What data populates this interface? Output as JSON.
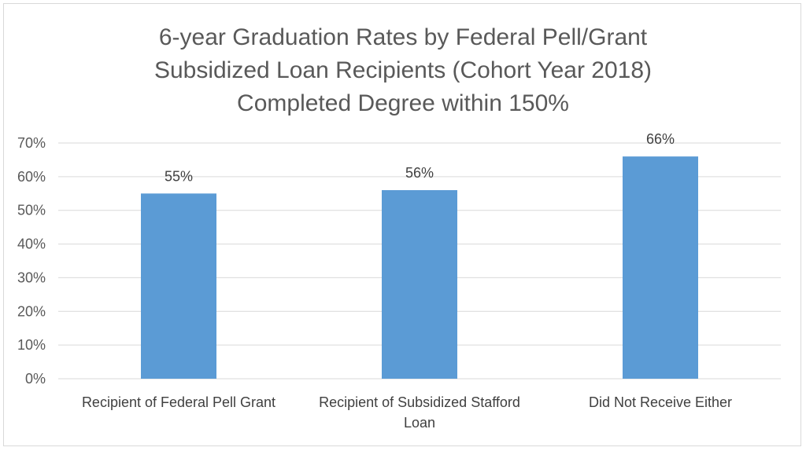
{
  "chart_data": {
    "type": "bar",
    "title_lines": [
      "6-year Graduation Rates by Federal Pell/Grant",
      "Subsidized Loan Recipients (Cohort Year 2018)",
      "Completed Degree within 150%"
    ],
    "categories": [
      [
        "Recipient of Federal Pell Grant"
      ],
      [
        "Recipient of Subsidized Stafford",
        "Loan"
      ],
      [
        "Did Not Receive Either"
      ]
    ],
    "values": [
      55,
      56,
      66
    ],
    "data_labels": [
      "55%",
      "56%",
      "66%"
    ],
    "y_ticks": [
      "0%",
      "10%",
      "20%",
      "30%",
      "40%",
      "50%",
      "60%",
      "70%"
    ],
    "ylim": [
      0,
      70
    ],
    "y_step": 10,
    "grid": true,
    "bar_color": "#5b9bd5",
    "grid_color": "#d9d9d9",
    "legend": "none"
  }
}
